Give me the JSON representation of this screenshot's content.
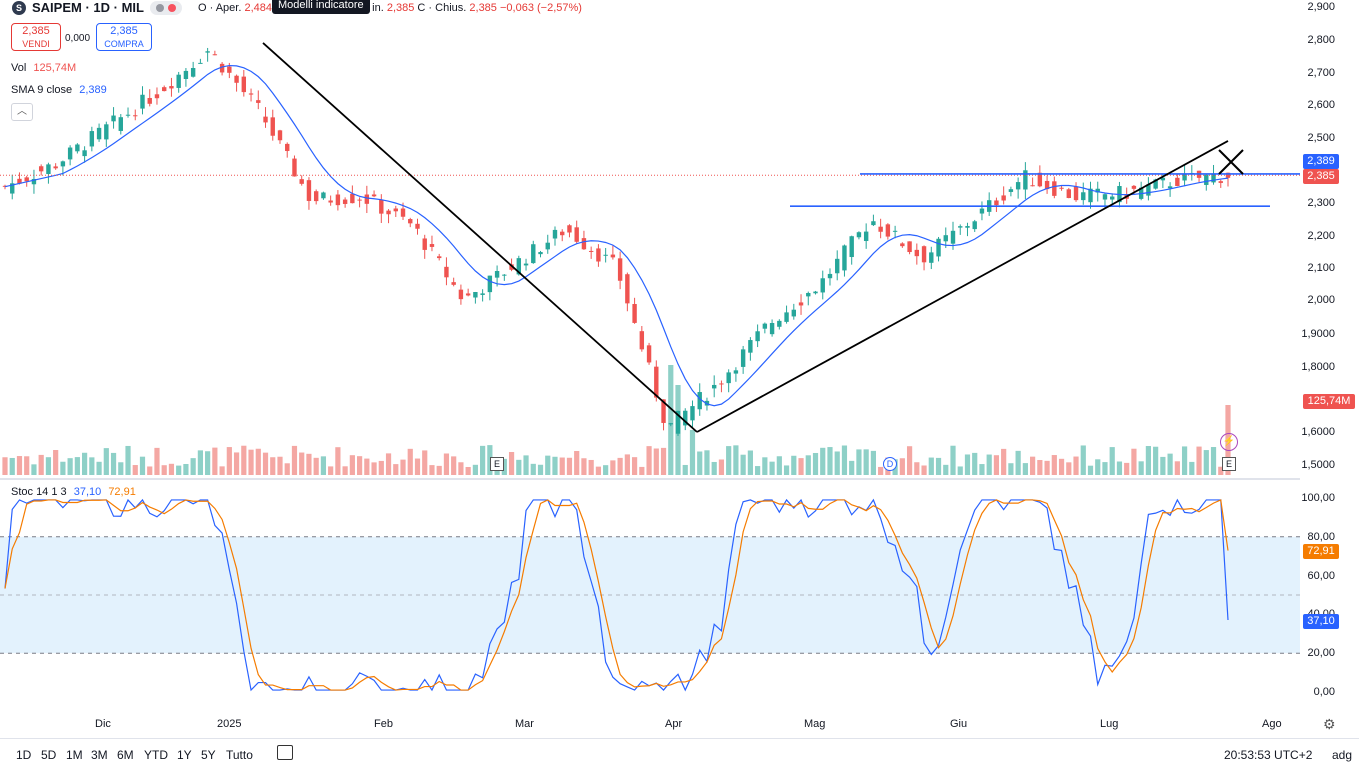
{
  "header": {
    "symbol": "SAIPEM · 1D · MIL",
    "logo_letter": "S",
    "ohlc_prefix": "O · Aper.",
    "open_partial": "2,484",
    "tooltip": "Modelli indicatore",
    "min_partial": "in.",
    "min_value": "2,385",
    "close_label": "C · Chius.",
    "close_value": "2,385",
    "change": "−0,063 (−2,57%)"
  },
  "trade": {
    "sell_price": "2,385",
    "sell_label": "VENDI",
    "spread": "0,000",
    "buy_price": "2,385",
    "buy_label": "COMPRA"
  },
  "indicators": {
    "vol_label": "Vol",
    "vol_value": "125,74M",
    "sma_label": "SMA 9 close",
    "sma_value": "2,389",
    "stoch_label": "Stoc 14 1 3",
    "stoch_k": "37,10",
    "stoch_d": "72,91"
  },
  "price_axis": [
    "2,900",
    "2,800",
    "2,700",
    "2,600",
    "2,500",
    "2,400",
    "2,300",
    "2,200",
    "2,100",
    "2,000",
    "1,9000",
    "1,8000",
    "1,6000",
    "1,5000"
  ],
  "stoch_axis": [
    "100,00",
    "80,00",
    "60,00",
    "40,00",
    "20,00",
    "0,00"
  ],
  "x_axis": [
    "Dic",
    "2025",
    "Feb",
    "Mar",
    "Apr",
    "Mag",
    "Giu",
    "Lug",
    "Ago"
  ],
  "badges": {
    "sma": "2,389",
    "price": "2,385",
    "volume": "125,74M",
    "stoch_d": "72,91",
    "stoch_k": "37,10"
  },
  "event_markers": [
    "E",
    "D",
    "E"
  ],
  "timeframes": [
    "1D",
    "5D",
    "1M",
    "3M",
    "6M",
    "YTD",
    "1Y",
    "5Y",
    "Tutto"
  ],
  "footer": {
    "clock": "20:53:53 UTC+2",
    "adj": "adg"
  },
  "colors": {
    "up": "#26a69a",
    "down": "#ef5350",
    "sma": "#2962ff",
    "trend": "#000000",
    "stoch_k": "#2962ff",
    "stoch_d": "#f57c00",
    "band": "#e3f2fd"
  },
  "chart_data": {
    "type": "candlestick",
    "title": "SAIPEM · 1D · MIL",
    "x": [
      "Dic",
      "2025",
      "Feb",
      "Mar",
      "Apr",
      "Mag",
      "Giu",
      "Lug",
      "Ago"
    ],
    "price_range": [
      1.5,
      2.9
    ],
    "close_path": [
      [
        "Nov end",
        2.35
      ],
      [
        "Dic",
        2.42
      ],
      [
        "Dic mid",
        2.53
      ],
      [
        "2025",
        2.64
      ],
      [
        "Jan mid",
        2.77
      ],
      [
        "Jan end",
        2.58
      ],
      [
        "Feb",
        2.31
      ],
      [
        "Feb mid",
        2.32
      ],
      [
        "Feb end",
        2.23
      ],
      [
        "Mar",
        2.0
      ],
      [
        "Mar mid",
        2.11
      ],
      [
        "Mar end",
        2.22
      ],
      [
        "Apr",
        2.1
      ],
      [
        "Apr 8",
        1.61
      ],
      [
        "Apr mid",
        1.75
      ],
      [
        "Apr end",
        1.93
      ],
      [
        "Mag",
        2.05
      ],
      [
        "Mag mid",
        2.25
      ],
      [
        "Mag end",
        2.13
      ],
      [
        "Giu",
        2.25
      ],
      [
        "Giu mid",
        2.38
      ],
      [
        "Giu end",
        2.32
      ],
      [
        "Lug",
        2.33
      ],
      [
        "Lug mid",
        2.37
      ],
      [
        "Lug end",
        2.385
      ]
    ],
    "sma9_last": 2.389,
    "last_price": 2.385,
    "horizontal_levels": [
      2.389,
      2.29
    ],
    "trendlines": [
      {
        "from": [
          "Jan mid",
          2.79
        ],
        "to": [
          "Apr 8",
          1.6
        ]
      },
      {
        "from": [
          "Apr 8",
          1.6
        ],
        "to": [
          "Lug end",
          2.49
        ]
      }
    ],
    "volume_last": "125,74M",
    "stochastic": {
      "k": 37.1,
      "d": 72.91,
      "overbought": 80,
      "oversold": 20,
      "range": [
        0,
        100
      ]
    }
  }
}
